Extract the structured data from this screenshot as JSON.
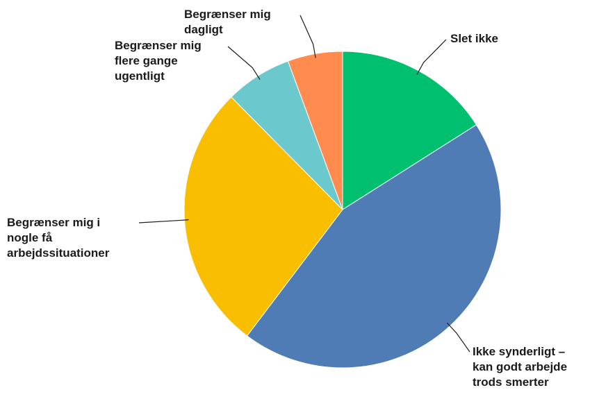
{
  "chart_data": {
    "type": "pie",
    "categories": [
      "Slet ikke",
      "Ikke synderligt – kan godt arbejde trods smerter",
      "Begrænser mig i nogle få arbejdssituationer",
      "Begrænser mig flere gange ugentligt",
      "Begrænser mig dagligt"
    ],
    "values": [
      16,
      44.3,
      27.3,
      6.8,
      5.6
    ],
    "colors": [
      "#00bf6f",
      "#507cb6",
      "#f9be00",
      "#6bc8cd",
      "#ff8b4f"
    ]
  }
}
